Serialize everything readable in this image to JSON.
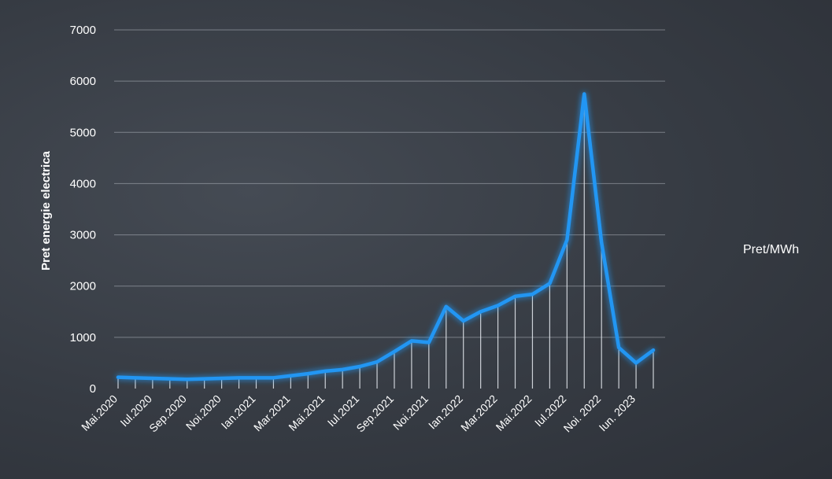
{
  "chart_data": {
    "type": "line",
    "ylabel": "Pret energie electrica",
    "xlabel": "",
    "title": "",
    "ylim": [
      0,
      7000
    ],
    "yticks": [
      0,
      1000,
      2000,
      3000,
      4000,
      5000,
      6000,
      7000
    ],
    "grid": true,
    "legend": "right",
    "drop_lines": true,
    "series": [
      {
        "name": "Pret/MWh",
        "color": "#2196f3",
        "values": [
          220,
          210,
          200,
          190,
          180,
          190,
          200,
          210,
          210,
          210,
          250,
          290,
          340,
          370,
          430,
          520,
          720,
          930,
          900,
          1600,
          1320,
          1500,
          1620,
          1800,
          1840,
          2050,
          2900,
          5750,
          2850,
          800,
          500,
          750
        ]
      }
    ],
    "categories": [
      "Mai.2020",
      "",
      "Iul.2020",
      "",
      "Sep.2020",
      "",
      "Noi.2020",
      "",
      "Ian.2021",
      "",
      "Mar.2021",
      "",
      "Mai.2021",
      "",
      "Iul.2021",
      "",
      "Sep.2021",
      "",
      "Noi.2021",
      "",
      "Ian.2022",
      "",
      "Mar.2022",
      "",
      "Mai.2022",
      "",
      "Iul.2022",
      "",
      "Noi. 2022",
      "",
      "Iun. 2023",
      ""
    ]
  }
}
